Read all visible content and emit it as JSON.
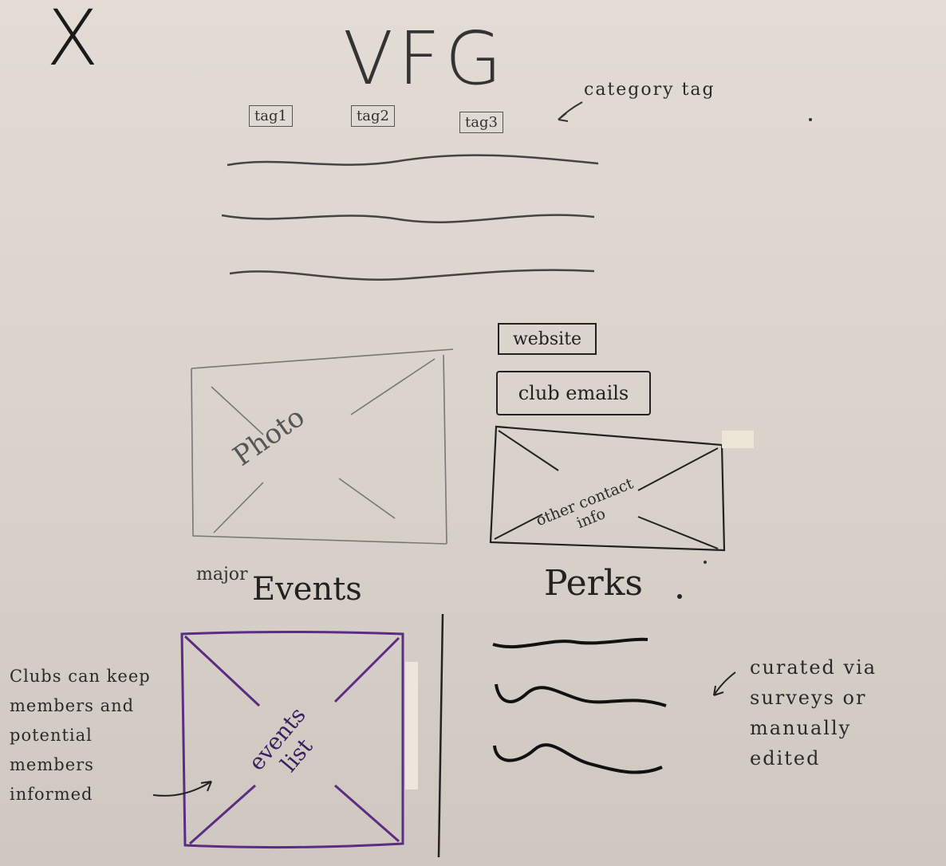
{
  "header": {
    "close_symbol": "X",
    "title": "VFG"
  },
  "tags": [
    "tag1",
    "tag2",
    "tag3"
  ],
  "annotations": {
    "category_tag": "category tag",
    "curated": "curated via surveys or manually edited",
    "clubs_note": "Clubs can keep members and potential members informed"
  },
  "photo": {
    "label": "Photo"
  },
  "contact": {
    "website_label": "website",
    "club_emails_label": "club emails",
    "other_contact_label": "other contact info"
  },
  "events": {
    "prefix": "major",
    "heading": "Events",
    "list_label": "events list",
    "border_color": "#5a2d82"
  },
  "perks": {
    "heading": "Perks"
  },
  "icons": [
    "close-icon",
    "arrow-left-icon",
    "photo-placeholder-icon"
  ]
}
